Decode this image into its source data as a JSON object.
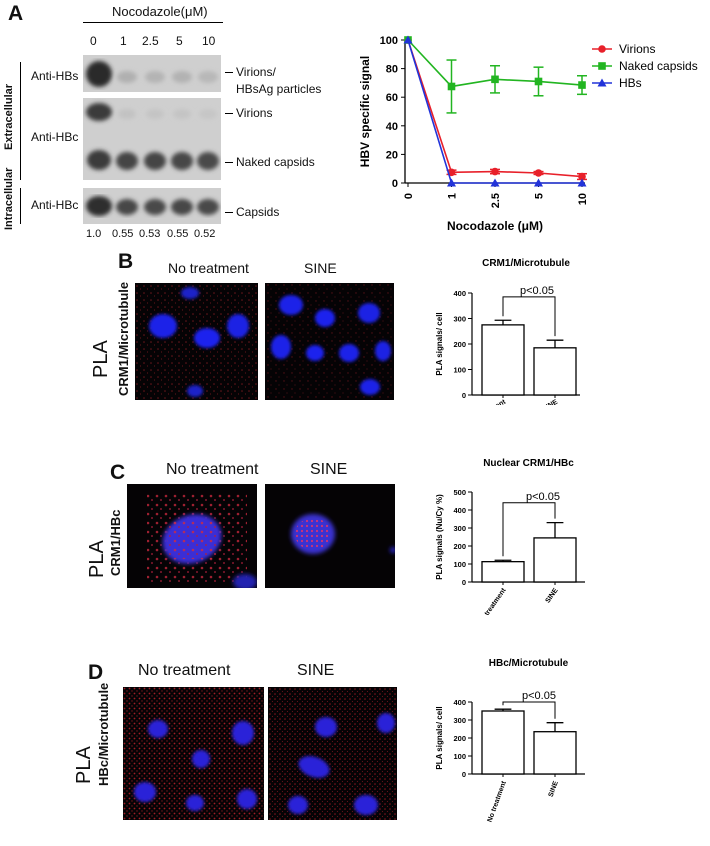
{
  "panelA": {
    "letter": "A",
    "treatment": "Nocodazole(μM)",
    "lanes": [
      "0",
      "1",
      "2.5",
      "5",
      "10"
    ],
    "extracellular_label": "Extracellular",
    "intracellular_label": "Intracellular",
    "blots": [
      {
        "antibody": "Anti-HBs",
        "bands": [
          "Virions/",
          "HBsAg particles"
        ]
      },
      {
        "antibody": "Anti-HBc",
        "bands": [
          "Virions",
          "Naked capsids"
        ]
      },
      {
        "antibody": "Anti-HBc",
        "bands": [
          "Capsids"
        ]
      }
    ],
    "quant": [
      "1.0",
      "0.55",
      "0.53",
      "0.55",
      "0.52"
    ]
  },
  "panelB": {
    "letter": "B",
    "pla": "PLA",
    "target": "CRM1/Microtubule",
    "cond1": "No treatment",
    "cond2": "SINE"
  },
  "panelC": {
    "letter": "C",
    "pla": "PLA",
    "target": "CRM1/HBc",
    "cond1": "No treatment",
    "cond2": "SINE"
  },
  "panelD": {
    "letter": "D",
    "pla": "PLA",
    "target": "HBc/Microtubule",
    "cond1": "No treatment",
    "cond2": "SINE"
  },
  "chart_data": [
    {
      "type": "line",
      "title": "",
      "xlabel": "Nocodazole (μM)",
      "ylabel": "HBV specific signal",
      "categories": [
        "0",
        "1",
        "2.5",
        "5",
        "10"
      ],
      "ylim": [
        0,
        100
      ],
      "yticks": [
        0,
        20,
        40,
        60,
        80,
        100
      ],
      "legend": "top-right",
      "series": [
        {
          "name": "Virions",
          "color": "#e8202a",
          "marker": "circle",
          "values": [
            100,
            7.5,
            8,
            7,
            4.5
          ],
          "errors": [
            0,
            1.5,
            1.5,
            1,
            2
          ]
        },
        {
          "name": "Naked capsids",
          "color": "#22b521",
          "marker": "square",
          "values": [
            100,
            67.5,
            72.5,
            71,
            68.5
          ],
          "errors": [
            0,
            18.5,
            9.5,
            10,
            6.5
          ]
        },
        {
          "name": "HBs",
          "color": "#2233d9",
          "marker": "triangle",
          "values": [
            100,
            0,
            0,
            0,
            0
          ],
          "errors": [
            0,
            0,
            0,
            0,
            0
          ]
        }
      ]
    },
    {
      "type": "bar",
      "title": "CRM1/Microtubule",
      "ylabel": "PLA signals/ cell",
      "categories": [
        "No treatment",
        "SINE"
      ],
      "values": [
        275,
        185
      ],
      "errors": [
        18,
        30
      ],
      "ylim": [
        0,
        400
      ],
      "yticks": [
        0,
        100,
        200,
        300,
        400
      ],
      "annotation": "p<0.05"
    },
    {
      "type": "bar",
      "title": "Nuclear CRM1/HBc",
      "ylabel": "PLA signals (Nu/Cy %)",
      "categories": [
        "No treatment",
        "SINE"
      ],
      "values": [
        113,
        245
      ],
      "errors": [
        8,
        85
      ],
      "ylim": [
        0,
        500
      ],
      "yticks": [
        0,
        100,
        200,
        300,
        400,
        500
      ],
      "annotation": "p<0.05"
    },
    {
      "type": "bar",
      "title": "HBc/Microtubule",
      "ylabel": "PLA signals/ cell",
      "categories": [
        "No treatment",
        "SINE"
      ],
      "values": [
        350,
        235
      ],
      "errors": [
        10,
        50
      ],
      "ylim": [
        0,
        400
      ],
      "yticks": [
        0,
        100,
        200,
        300,
        400
      ],
      "annotation": "p<0.05"
    }
  ]
}
